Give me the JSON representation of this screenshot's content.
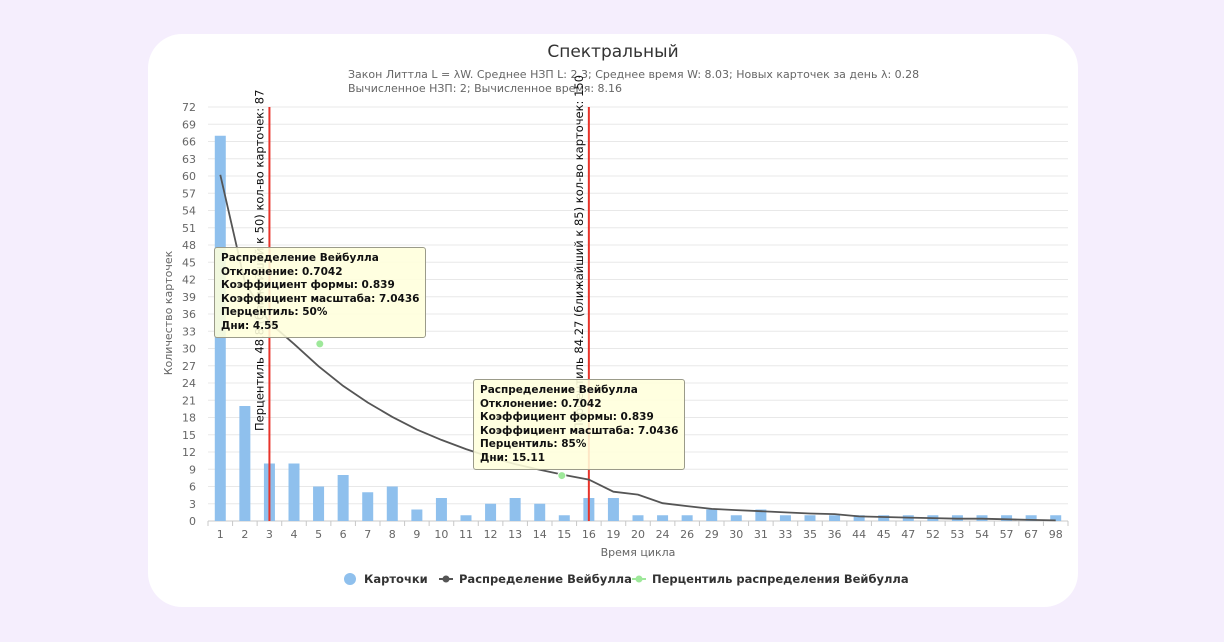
{
  "chart_data": {
    "type": "bar",
    "title": "Спектральный",
    "subtitle_line1": "Закон Литтла L = λW. Среднее НЗП L: 2.3; Среднее время W: 8.03; Новых карточек за день λ: 0.28",
    "subtitle_line2": "Вычисленное НЗП: 2; Вычисленное время: 8.16",
    "xlabel": "Время цикла",
    "ylabel": "Количество карточек",
    "ylim": [
      0,
      72
    ],
    "yticks": [
      0,
      3,
      6,
      9,
      12,
      15,
      18,
      21,
      24,
      27,
      30,
      33,
      36,
      39,
      42,
      45,
      48,
      51,
      54,
      57,
      60,
      63,
      66,
      69,
      72
    ],
    "categories": [
      "1",
      "2",
      "3",
      "4",
      "5",
      "6",
      "7",
      "8",
      "9",
      "10",
      "11",
      "12",
      "13",
      "14",
      "15",
      "16",
      "19",
      "20",
      "24",
      "26",
      "29",
      "30",
      "31",
      "33",
      "35",
      "36",
      "44",
      "45",
      "47",
      "52",
      "53",
      "54",
      "57",
      "67",
      "98"
    ],
    "series": [
      {
        "name": "Карточки",
        "type": "bar",
        "color": "#8fc0ed",
        "values": [
          67,
          20,
          10,
          10,
          6,
          8,
          5,
          6,
          2,
          4,
          1,
          3,
          4,
          3,
          1,
          4,
          4,
          1,
          1,
          1,
          2,
          1,
          2,
          1,
          1,
          1,
          1,
          1,
          1,
          1,
          1,
          1,
          1,
          1,
          1
        ]
      },
      {
        "name": "Распределение Вейбулла",
        "type": "line",
        "color": "#555555",
        "values": [
          60.2,
          41.5,
          34.5,
          30.8,
          26.9,
          23.5,
          20.6,
          18.1,
          15.9,
          14.1,
          12.5,
          11.1,
          9.9,
          8.9,
          8.0,
          7.2,
          5.1,
          4.6,
          3.1,
          2.6,
          2.1,
          1.9,
          1.7,
          1.5,
          1.3,
          1.2,
          0.8,
          0.7,
          0.6,
          0.5,
          0.4,
          0.4,
          0.3,
          0.2,
          0.1
        ]
      },
      {
        "name": "Перцентиль распределения Вейбулла",
        "type": "scatter",
        "color": "#9ee89a",
        "points": [
          {
            "category_index": 4.55,
            "value": 30.8
          },
          {
            "category_index": 14.4,
            "value": 7.9
          }
        ]
      }
    ],
    "percentile_lines": [
      {
        "category_index": 2.5,
        "label": "Перцентиль 48.8 (ближайший к 50) кол-во карточек: 87",
        "color": "#e8332a"
      },
      {
        "category_index": 15.5,
        "label": "Перцентиль 84.27 (ближайший к 85) кол-во карточек: 150",
        "color": "#e8332a"
      }
    ],
    "tooltips": [
      {
        "lines": [
          "Распределение Вейбулла",
          "Отклонение: 0.7042",
          "Коэффициент формы: 0.839",
          "Коэффициент масштаба: 7.0436",
          "Перцентиль: 50%",
          "Дни: 4.55"
        ]
      },
      {
        "lines": [
          "Распределение Вейбулла",
          "Отклонение: 0.7042",
          "Коэффициент формы: 0.839",
          "Коэффициент масштаба: 7.0436",
          "Перцентиль: 85%",
          "Дни: 15.11"
        ]
      }
    ],
    "grid": true,
    "legend": "bottom-center"
  }
}
